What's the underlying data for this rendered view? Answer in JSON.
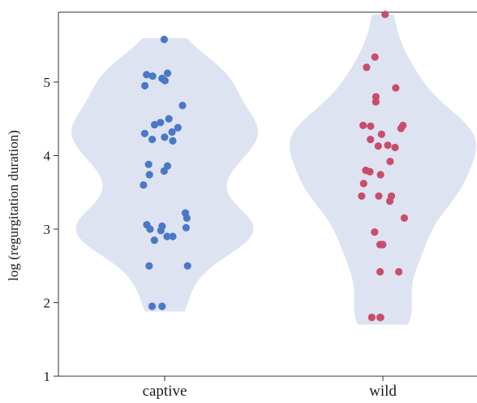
{
  "chart_data": {
    "type": "violin",
    "title": "",
    "xlabel": "",
    "ylabel": "log (regurgitation duration)",
    "ylim": [
      1,
      5.95
    ],
    "yticks": [
      1,
      2,
      3,
      4,
      5
    ],
    "categories": [
      "captive",
      "wild"
    ],
    "grid": false,
    "series": [
      {
        "category": "captive",
        "fill_color": "#dde3f1",
        "point_color": "#4a78c6",
        "violin_range": [
          1.88,
          5.6
        ],
        "points": [
          5.58,
          5.12,
          5.1,
          5.08,
          5.05,
          5.02,
          4.95,
          4.68,
          4.5,
          4.45,
          4.42,
          4.38,
          4.32,
          4.3,
          4.25,
          4.22,
          4.2,
          3.88,
          3.86,
          3.79,
          3.74,
          3.6,
          3.22,
          3.15,
          3.06,
          3.04,
          3.02,
          3.0,
          2.98,
          2.9,
          2.9,
          2.85,
          2.5,
          2.5,
          1.95,
          1.95
        ]
      },
      {
        "category": "wild",
        "fill_color": "#dde3f1",
        "point_color": "#c94d6b",
        "violin_range": [
          1.7,
          5.92
        ],
        "points": [
          5.92,
          5.34,
          5.2,
          4.92,
          4.8,
          4.73,
          4.41,
          4.41,
          4.4,
          4.37,
          4.29,
          4.22,
          4.14,
          4.13,
          4.11,
          3.92,
          3.8,
          3.78,
          3.74,
          3.62,
          3.45,
          3.45,
          3.45,
          3.38,
          3.15,
          2.96,
          2.79,
          2.79,
          2.42,
          2.42,
          1.8,
          1.8,
          1.8
        ]
      }
    ]
  }
}
